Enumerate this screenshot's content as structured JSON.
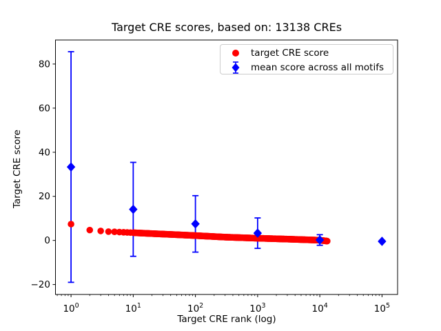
{
  "chart_data": {
    "type": "scatter",
    "title": "Target CRE scores, based on: 13138 CREs",
    "xlabel": "Target CRE rank (log)",
    "ylabel": "Target CRE score",
    "xscale": "log",
    "xlim": [
      0.562,
      178000
    ],
    "ylim": [
      -24.5,
      90.9
    ],
    "x_ticks": [
      1,
      10,
      100,
      1000,
      10000,
      100000
    ],
    "x_tick_base": "10",
    "x_tick_exponents": [
      "0",
      "1",
      "2",
      "3",
      "4",
      "5"
    ],
    "y_ticks": [
      -20,
      0,
      20,
      40,
      60,
      80
    ],
    "y_tick_labels": [
      "−20",
      "0",
      "20",
      "40",
      "60",
      "80"
    ],
    "grid": false,
    "legend": {
      "position": "upper right",
      "entries": [
        "target CRE score",
        "mean score across all motifs"
      ]
    },
    "colors": {
      "target_score": "#ff0000",
      "mean_score": "#0000ff",
      "axis": "#000000",
      "legend_border": "#cccccc"
    },
    "series": [
      {
        "name": "target CRE score",
        "marker": "circle",
        "color": "#ff0000",
        "n_points": 13138,
        "anchor_ranks": [
          1,
          2,
          3,
          4,
          5,
          7,
          10,
          20,
          50,
          100,
          300,
          1000,
          3000,
          10000,
          13138
        ],
        "anchor_scores": [
          7.4,
          4.7,
          4.3,
          4.0,
          3.9,
          3.7,
          3.5,
          3.1,
          2.6,
          2.2,
          1.5,
          1.0,
          0.6,
          0.1,
          -0.3
        ]
      },
      {
        "name": "mean score across all motifs",
        "marker": "diamond",
        "color": "#0000ff",
        "x": [
          1,
          10,
          100,
          1000,
          10000,
          100000
        ],
        "y": [
          33.3,
          14.1,
          7.5,
          3.3,
          0.2,
          -0.4
        ],
        "yerr": [
          52.3,
          21.3,
          12.8,
          6.9,
          2.4,
          0.4
        ]
      }
    ]
  }
}
